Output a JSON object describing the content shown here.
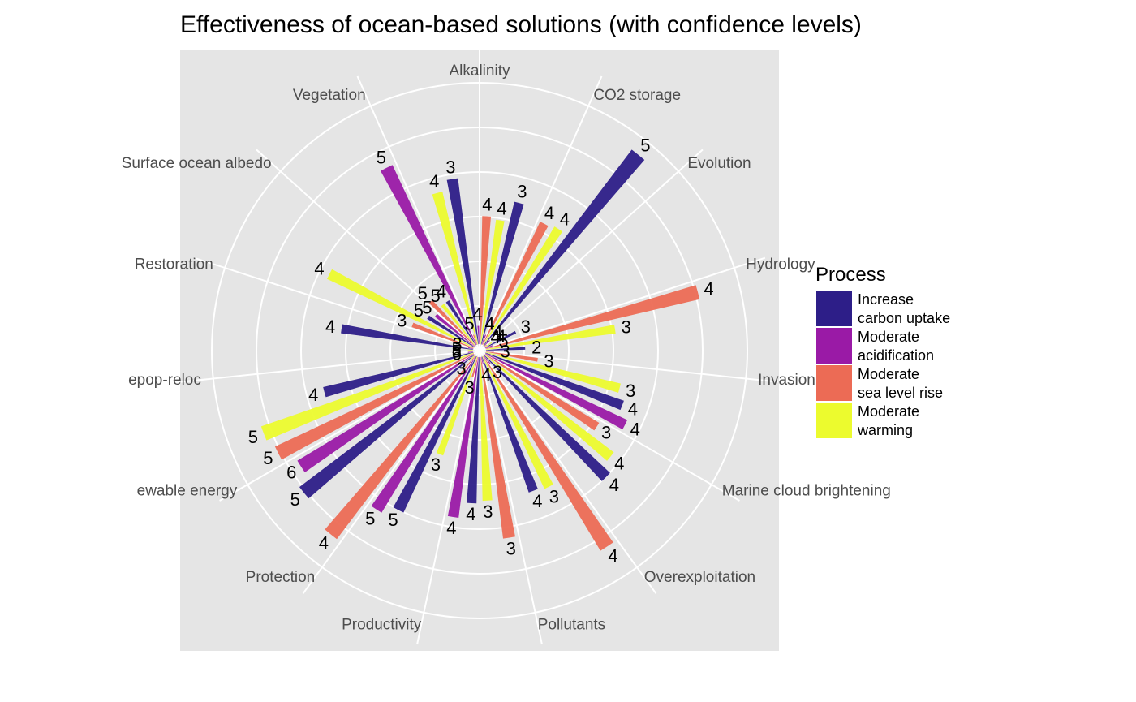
{
  "chart_data": {
    "type": "bar",
    "coord": "polar",
    "title": "Effectiveness of ocean-based solutions (with confidence levels)",
    "categories": [
      "Alkalinity",
      "CO2 storage",
      "Evolution",
      "Hydrology",
      "Invasion",
      "Marine cloud brightening",
      "Overexploitation",
      "Pollutants",
      "Productivity",
      "Protection",
      "Renewable energy",
      "Repop-reloc",
      "Restoration",
      "Surface ocean albedo",
      "Vegetation"
    ],
    "category_labels": [
      "Alkalinity",
      "CO2 storage",
      "Evolution",
      "Hydrology",
      "Invasion",
      "Marine cloud brightening",
      "Overexploitation",
      "Pollutants",
      "Productivity",
      "Protection",
      "ewable energy",
      "epop-reloc",
      "Restoration",
      "Surface ocean albedo",
      "Vegetation"
    ],
    "ylim": [
      0,
      1
    ],
    "grid": true,
    "legend": {
      "title": "Process",
      "position": "right",
      "entries": [
        {
          "line1": "Increase",
          "line2": "carbon uptake"
        },
        {
          "line1": "Moderate",
          "line2": "acidification"
        },
        {
          "line1": "Moderate",
          "line2": "sea level rise"
        },
        {
          "line1": "Moderate",
          "line2": "warming"
        }
      ]
    },
    "colors": [
      "#2d1e88",
      "#9a1aa6",
      "#ec6b55",
      "#ecfb2e"
    ],
    "series": [
      {
        "name": "Increase carbon uptake",
        "values": [
          0.64,
          0.56,
          0.94,
          0.13,
          0.15,
          0.56,
          0.66,
          0.55,
          0.56,
          0.66,
          0.84,
          0.59,
          0.51,
          0.21,
          0.2
        ],
        "labels": [
          "3",
          "3",
          "5",
          "3",
          "2",
          "4",
          "4",
          "4",
          "4",
          "5",
          "5",
          "4",
          "4",
          "5",
          "4"
        ]
      },
      {
        "name": "Moderate acidification",
        "values": [
          0.07,
          0.04,
          0.03,
          0.03,
          0.03,
          0.6,
          0.04,
          0.03,
          0.62,
          0.7,
          0.79,
          0.02,
          0.02,
          0.19,
          0.76
        ],
        "labels": [
          "4",
          "4",
          "4",
          "5",
          "3",
          "4",
          "3",
          "4",
          "4",
          "5",
          "6",
          "6",
          "3",
          "5",
          "5"
        ]
      },
      {
        "name": "Moderate sea level rise",
        "values": [
          0.49,
          0.52,
          0.01,
          0.84,
          0.2,
          0.51,
          0.87,
          0.7,
          0.08,
          0.88,
          0.84,
          0.02,
          0.25,
          0.24,
          0.04
        ],
        "labels": [
          "4",
          "4",
          "4",
          "4",
          "3",
          "3",
          "4",
          "3",
          "3",
          "4",
          "5",
          "5",
          "3",
          "5",
          "5"
        ]
      },
      {
        "name": "Moderate warming",
        "values": [
          0.48,
          0.53,
          0.03,
          0.5,
          0.53,
          0.62,
          0.56,
          0.55,
          0.4,
          0.03,
          0.86,
          0.02,
          0.62,
          0.2,
          0.6
        ],
        "labels": [
          "4",
          "4",
          "4",
          "3",
          "3",
          "4",
          "3",
          "3",
          "3",
          "3",
          "5",
          "5",
          "4",
          "5",
          "4"
        ]
      }
    ]
  }
}
